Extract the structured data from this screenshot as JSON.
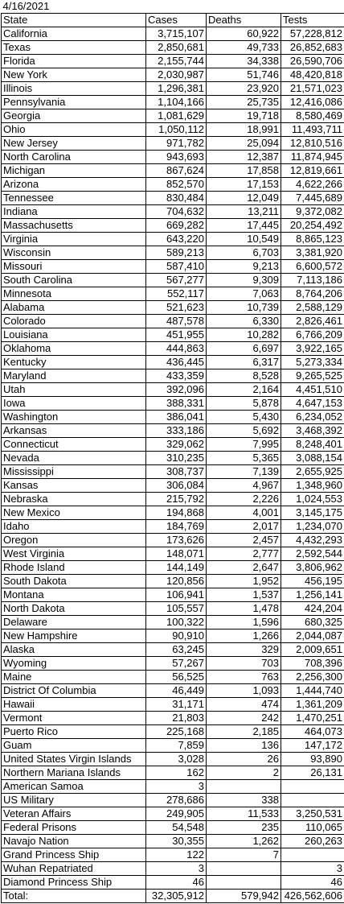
{
  "date": "4/16/2021",
  "headers": [
    "State",
    "Cases",
    "Deaths",
    "Tests"
  ],
  "rows": [
    [
      "California",
      "3,715,107",
      "60,922",
      "57,228,812"
    ],
    [
      "Texas",
      "2,850,681",
      "49,733",
      "26,852,683"
    ],
    [
      "Florida",
      "2,155,744",
      "34,338",
      "26,590,706"
    ],
    [
      "New York",
      "2,030,987",
      "51,746",
      "48,420,818"
    ],
    [
      "Illinois",
      "1,296,381",
      "23,920",
      "21,571,023"
    ],
    [
      "Pennsylvania",
      "1,104,166",
      "25,735",
      "12,416,086"
    ],
    [
      "Georgia",
      "1,081,629",
      "19,718",
      "8,580,469"
    ],
    [
      "Ohio",
      "1,050,112",
      "18,991",
      "11,493,711"
    ],
    [
      "New Jersey",
      "971,782",
      "25,094",
      "12,810,516"
    ],
    [
      "North Carolina",
      "943,693",
      "12,387",
      "11,874,945"
    ],
    [
      "Michigan",
      "867,624",
      "17,858",
      "12,819,661"
    ],
    [
      "Arizona",
      "852,570",
      "17,153",
      "4,622,266"
    ],
    [
      "Tennessee",
      "830,484",
      "12,049",
      "7,445,689"
    ],
    [
      "Indiana",
      "704,632",
      "13,211",
      "9,372,082"
    ],
    [
      "Massachusetts",
      "669,282",
      "17,445",
      "20,254,492"
    ],
    [
      "Virginia",
      "643,220",
      "10,549",
      "8,865,123"
    ],
    [
      "Wisconsin",
      "589,213",
      "6,703",
      "3,381,920"
    ],
    [
      "Missouri",
      "587,410",
      "9,213",
      "6,600,572"
    ],
    [
      "South Carolina",
      "567,277",
      "9,309",
      "7,113,186"
    ],
    [
      "Minnesota",
      "552,117",
      "7,063",
      "8,764,206"
    ],
    [
      "Alabama",
      "521,623",
      "10,739",
      "2,588,129"
    ],
    [
      "Colorado",
      "487,578",
      "6,330",
      "2,826,461"
    ],
    [
      "Louisiana",
      "451,955",
      "10,282",
      "6,766,209"
    ],
    [
      "Oklahoma",
      "444,863",
      "6,697",
      "3,922,165"
    ],
    [
      "Kentucky",
      "436,445",
      "6,317",
      "5,273,334"
    ],
    [
      "Maryland",
      "433,359",
      "8,528",
      "9,265,525"
    ],
    [
      "Utah",
      "392,096",
      "2,164",
      "4,451,510"
    ],
    [
      "Iowa",
      "388,331",
      "5,878",
      "4,647,153"
    ],
    [
      "Washington",
      "386,041",
      "5,430",
      "6,234,052"
    ],
    [
      "Arkansas",
      "333,186",
      "5,692",
      "3,468,392"
    ],
    [
      "Connecticut",
      "329,062",
      "7,995",
      "8,248,401"
    ],
    [
      "Nevada",
      "310,235",
      "5,365",
      "3,088,154"
    ],
    [
      "Mississippi",
      "308,737",
      "7,139",
      "2,655,925"
    ],
    [
      "Kansas",
      "306,084",
      "4,967",
      "1,348,960"
    ],
    [
      "Nebraska",
      "215,792",
      "2,226",
      "1,024,553"
    ],
    [
      "New Mexico",
      "194,868",
      "4,001",
      "3,145,175"
    ],
    [
      "Idaho",
      "184,769",
      "2,017",
      "1,234,070"
    ],
    [
      "Oregon",
      "173,626",
      "2,457",
      "4,432,293"
    ],
    [
      "West Virginia",
      "148,071",
      "2,777",
      "2,592,544"
    ],
    [
      "Rhode Island",
      "144,149",
      "2,647",
      "3,806,962"
    ],
    [
      "South Dakota",
      "120,856",
      "1,952",
      "456,195"
    ],
    [
      "Montana",
      "106,941",
      "1,537",
      "1,256,141"
    ],
    [
      "North Dakota",
      "105,557",
      "1,478",
      "424,204"
    ],
    [
      "Delaware",
      "100,322",
      "1,596",
      "680,325"
    ],
    [
      "New Hampshire",
      "90,910",
      "1,266",
      "2,044,087"
    ],
    [
      "Alaska",
      "63,245",
      "329",
      "2,009,651"
    ],
    [
      "Wyoming",
      "57,267",
      "703",
      "708,396"
    ],
    [
      "Maine",
      "56,525",
      "763",
      "2,256,300"
    ],
    [
      "District Of Columbia",
      "46,449",
      "1,093",
      "1,444,740"
    ],
    [
      "Hawaii",
      "31,171",
      "474",
      "1,361,209"
    ],
    [
      "Vermont",
      "21,803",
      "242",
      "1,470,251"
    ],
    [
      "Puerto Rico",
      "225,168",
      "2,185",
      "464,073"
    ],
    [
      "Guam",
      "7,859",
      "136",
      "147,172"
    ],
    [
      "United States Virgin Islands",
      "3,028",
      "26",
      "93,890"
    ],
    [
      "Northern Mariana Islands",
      "162",
      "2",
      "26,131"
    ],
    [
      "American Samoa",
      "3",
      "",
      ""
    ],
    [
      "US Military",
      "278,686",
      "338",
      ""
    ],
    [
      "Veteran Affairs",
      "249,905",
      "11,533",
      "3,250,531"
    ],
    [
      "Federal Prisons",
      "54,548",
      "235",
      "110,065"
    ],
    [
      "Navajo Nation",
      "30,355",
      "1,262",
      "260,263"
    ],
    [
      "Grand Princess Ship",
      "122",
      "7",
      ""
    ],
    [
      "Wuhan Repatriated",
      "3",
      "",
      "3"
    ],
    [
      "Diamond Princess Ship",
      "46",
      "",
      "46"
    ]
  ],
  "total": [
    "Total:",
    "32,305,912",
    "579,942",
    "426,562,606"
  ]
}
